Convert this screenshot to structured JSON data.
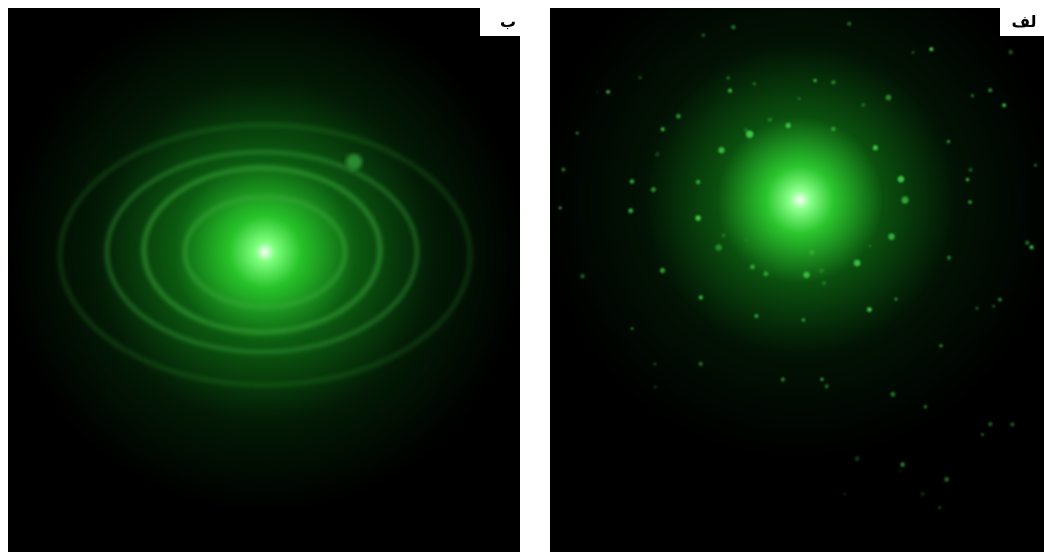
{
  "panels": [
    {
      "label": "ب"
    },
    {
      "label": "لف"
    }
  ]
}
